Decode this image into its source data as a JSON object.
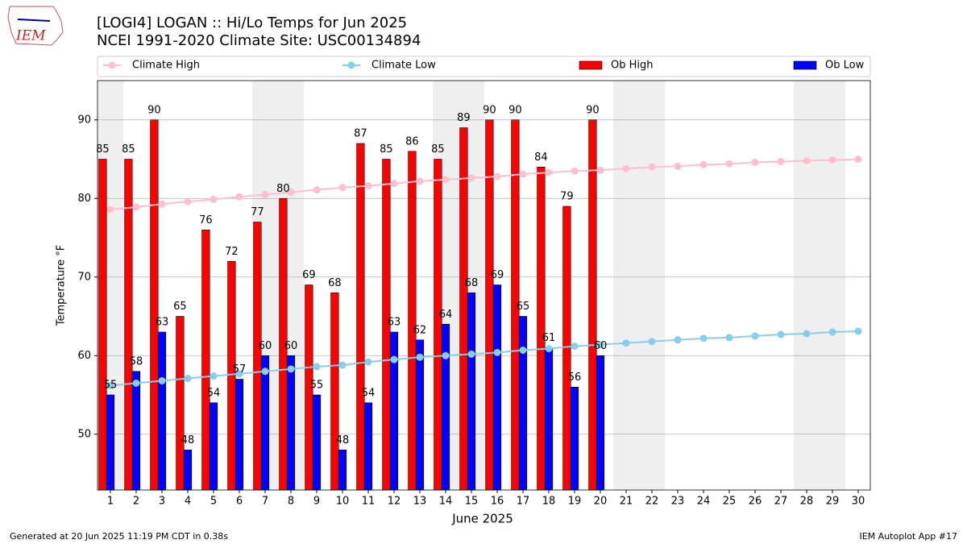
{
  "logo_text": "IEM",
  "footer": {
    "left": "Generated at 20 Jun 2025 11:19 PM CDT in 0.38s",
    "right": "IEM Autoplot App #17"
  },
  "chart_data": {
    "type": "bar",
    "title": "[LOGI4] LOGAN :: Hi/Lo Temps for Jun 2025",
    "subtitle": "NCEI 1991-2020 Climate Site: USC00134894",
    "x_label": "June 2025",
    "y_label": "Temperature °F",
    "categories": [
      "1",
      "2",
      "3",
      "4",
      "5",
      "6",
      "7",
      "8",
      "9",
      "10",
      "11",
      "12",
      "13",
      "14",
      "15",
      "16",
      "17",
      "18",
      "19",
      "20",
      "21",
      "22",
      "23",
      "24",
      "25",
      "26",
      "27",
      "28",
      "29",
      "30"
    ],
    "series": [
      {
        "name": "Climate High",
        "type": "line",
        "color": "#ffc0cb",
        "values": [
          78.6,
          78.9,
          79.3,
          79.6,
          79.9,
          80.2,
          80.5,
          80.8,
          81.1,
          81.4,
          81.6,
          81.9,
          82.2,
          82.4,
          82.6,
          82.8,
          83.1,
          83.3,
          83.5,
          83.6,
          83.8,
          84.0,
          84.1,
          84.3,
          84.4,
          84.6,
          84.7,
          84.8,
          84.9,
          85.0
        ]
      },
      {
        "name": "Climate Low",
        "type": "line",
        "color": "#87ceeb",
        "values": [
          56.2,
          56.5,
          56.8,
          57.1,
          57.4,
          57.7,
          58.0,
          58.3,
          58.6,
          58.8,
          59.2,
          59.5,
          59.8,
          60.0,
          60.2,
          60.4,
          60.7,
          60.9,
          61.2,
          61.4,
          61.6,
          61.8,
          62.0,
          62.2,
          62.3,
          62.5,
          62.7,
          62.8,
          63.0,
          63.1
        ]
      },
      {
        "name": "Ob High",
        "type": "bar",
        "color": "#ff0000",
        "values": [
          85,
          85,
          90,
          65,
          76,
          72,
          77,
          80,
          69,
          68,
          87,
          85,
          86,
          85,
          89,
          90,
          90,
          84,
          79,
          90,
          null,
          null,
          null,
          null,
          null,
          null,
          null,
          null,
          null,
          null
        ]
      },
      {
        "name": "Ob Low",
        "type": "bar",
        "color": "#0000ff",
        "values": [
          55,
          58,
          63,
          48,
          54,
          57,
          60,
          60,
          55,
          48,
          54,
          63,
          62,
          64,
          68,
          69,
          65,
          61,
          56,
          60,
          null,
          null,
          null,
          null,
          null,
          null,
          null,
          null,
          null,
          null
        ]
      }
    ],
    "ylim": [
      42.9,
      95
    ],
    "yticks": [
      50,
      60,
      70,
      80,
      90
    ],
    "grid": true,
    "shaded_days": [
      1,
      7,
      8,
      14,
      15,
      21,
      22,
      28,
      29
    ],
    "shade_color": "#efefef"
  }
}
